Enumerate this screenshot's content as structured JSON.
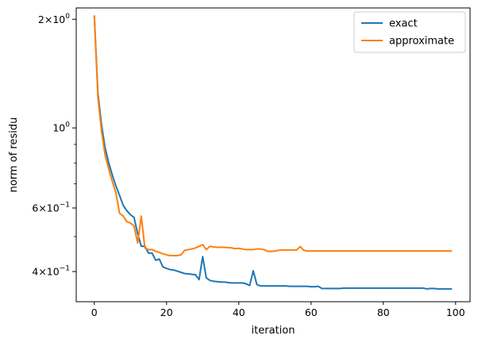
{
  "chart_data": {
    "type": "line",
    "title": "",
    "xlabel": "iteration",
    "ylabel": "norm of residu",
    "xlim": [
      -5,
      104
    ],
    "ylim": [
      0.33,
      2.15
    ],
    "yscale": "log",
    "grid": false,
    "legend_position": "top-right",
    "x_ticks": [
      {
        "value": 0,
        "label": "0"
      },
      {
        "value": 20,
        "label": "20"
      },
      {
        "value": 40,
        "label": "40"
      },
      {
        "value": 60,
        "label": "60"
      },
      {
        "value": 80,
        "label": "80"
      },
      {
        "value": 100,
        "label": "100"
      }
    ],
    "y_major_ticks": [
      {
        "value": 2.0,
        "mantissa": "2",
        "exponent": "0"
      },
      {
        "value": 1.0,
        "mantissa": "",
        "exponent": "0"
      },
      {
        "value": 0.6,
        "mantissa": "6",
        "exponent": "−1"
      },
      {
        "value": 0.4,
        "mantissa": "4",
        "exponent": "−1"
      }
    ],
    "y_minor_ticks": [
      0.5,
      0.7,
      0.8,
      0.9,
      0.3
    ],
    "series": [
      {
        "name": "exact",
        "color": "#1f77b4",
        "x": [
          0,
          1,
          2,
          3,
          4,
          5,
          6,
          7,
          8,
          9,
          10,
          11,
          12,
          13,
          14,
          15,
          16,
          17,
          18,
          19,
          20,
          21,
          22,
          23,
          24,
          25,
          26,
          27,
          28,
          29,
          30,
          31,
          32,
          33,
          34,
          35,
          36,
          37,
          38,
          39,
          40,
          41,
          42,
          43,
          44,
          45,
          46,
          47,
          48,
          49,
          50,
          51,
          52,
          53,
          54,
          55,
          56,
          57,
          58,
          59,
          60,
          61,
          62,
          63,
          64,
          65,
          66,
          67,
          68,
          69,
          70,
          71,
          72,
          73,
          74,
          75,
          76,
          77,
          78,
          79,
          80,
          81,
          82,
          83,
          84,
          85,
          86,
          87,
          88,
          89,
          90,
          91,
          92,
          93,
          94,
          95,
          96,
          97,
          98,
          99
        ],
        "y": [
          2.05,
          1.25,
          1.02,
          0.88,
          0.8,
          0.74,
          0.69,
          0.65,
          0.61,
          0.59,
          0.575,
          0.565,
          0.51,
          0.47,
          0.47,
          0.45,
          0.45,
          0.43,
          0.433,
          0.412,
          0.408,
          0.405,
          0.404,
          0.401,
          0.398,
          0.395,
          0.394,
          0.393,
          0.392,
          0.38,
          0.44,
          0.384,
          0.378,
          0.376,
          0.375,
          0.374,
          0.374,
          0.373,
          0.372,
          0.372,
          0.372,
          0.372,
          0.37,
          0.366,
          0.402,
          0.368,
          0.365,
          0.365,
          0.365,
          0.365,
          0.365,
          0.365,
          0.365,
          0.365,
          0.364,
          0.364,
          0.364,
          0.364,
          0.364,
          0.364,
          0.363,
          0.363,
          0.364,
          0.359,
          0.359,
          0.359,
          0.359,
          0.359,
          0.359,
          0.36,
          0.36,
          0.36,
          0.36,
          0.36,
          0.36,
          0.36,
          0.36,
          0.36,
          0.36,
          0.36,
          0.36,
          0.36,
          0.36,
          0.36,
          0.36,
          0.36,
          0.36,
          0.36,
          0.36,
          0.36,
          0.36,
          0.36,
          0.358,
          0.359,
          0.359,
          0.358,
          0.358,
          0.358,
          0.358,
          0.358
        ]
      },
      {
        "name": "approximate",
        "color": "#ff7f0e",
        "x": [
          0,
          1,
          2,
          3,
          4,
          5,
          6,
          7,
          8,
          9,
          10,
          11,
          12,
          13,
          14,
          15,
          16,
          17,
          18,
          19,
          20,
          21,
          22,
          23,
          24,
          25,
          26,
          27,
          28,
          29,
          30,
          31,
          32,
          33,
          34,
          35,
          36,
          37,
          38,
          39,
          40,
          41,
          42,
          43,
          44,
          45,
          46,
          47,
          48,
          49,
          50,
          51,
          52,
          53,
          54,
          55,
          56,
          57,
          58,
          59,
          60,
          61,
          62,
          63,
          64,
          65,
          66,
          67,
          68,
          69,
          70,
          71,
          72,
          73,
          74,
          75,
          76,
          77,
          78,
          79,
          80,
          81,
          82,
          83,
          84,
          85,
          86,
          87,
          88,
          89,
          90,
          91,
          92,
          93,
          94,
          95,
          96,
          97,
          98,
          99
        ],
        "y": [
          2.05,
          1.22,
          0.98,
          0.84,
          0.77,
          0.71,
          0.66,
          0.58,
          0.57,
          0.55,
          0.545,
          0.535,
          0.48,
          0.57,
          0.465,
          0.46,
          0.46,
          0.455,
          0.452,
          0.448,
          0.445,
          0.443,
          0.443,
          0.443,
          0.445,
          0.458,
          0.46,
          0.462,
          0.465,
          0.47,
          0.475,
          0.46,
          0.47,
          0.468,
          0.467,
          0.467,
          0.467,
          0.466,
          0.465,
          0.463,
          0.464,
          0.462,
          0.46,
          0.46,
          0.46,
          0.462,
          0.462,
          0.46,
          0.455,
          0.455,
          0.456,
          0.458,
          0.459,
          0.459,
          0.459,
          0.459,
          0.459,
          0.469,
          0.458,
          0.456,
          0.456,
          0.456,
          0.456,
          0.456,
          0.456,
          0.456,
          0.456,
          0.456,
          0.456,
          0.456,
          0.456,
          0.456,
          0.456,
          0.456,
          0.456,
          0.456,
          0.456,
          0.456,
          0.456,
          0.456,
          0.456,
          0.456,
          0.456,
          0.456,
          0.456,
          0.456,
          0.456,
          0.456,
          0.456,
          0.456,
          0.456,
          0.456,
          0.456,
          0.456,
          0.456,
          0.456,
          0.456,
          0.456,
          0.456,
          0.456
        ]
      }
    ]
  }
}
